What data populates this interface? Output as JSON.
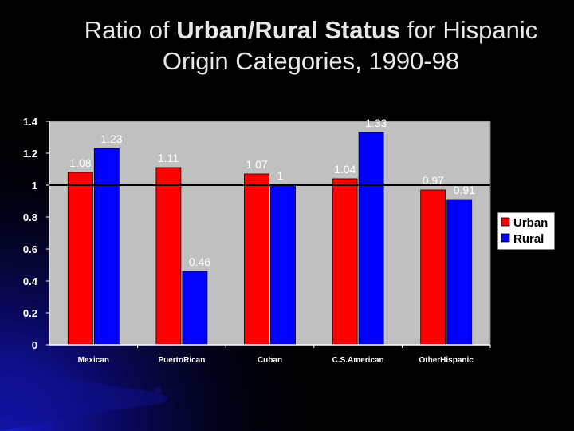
{
  "slide": {
    "title_parts": {
      "pre": "Ratio of ",
      "bold": "Urban/Rural Status",
      "post": " for Hispanic",
      "line2": "Origin Categories, 1990-98"
    },
    "background_color": "#000000",
    "accent_color": "#1a1ad8"
  },
  "chart_data": {
    "type": "bar",
    "title": "Ratio of Urban/Rural Status for Hispanic Origin Categories, 1990-98",
    "categories": [
      "Mexican",
      "PuertoRican",
      "Cuban",
      "C.S.American",
      "OtherHispanic"
    ],
    "series": [
      {
        "name": "Urban",
        "color": "#ff0000",
        "values": [
          1.08,
          1.11,
          1.07,
          1.04,
          0.97
        ],
        "labels": [
          "1.08",
          "1.11",
          "1.07",
          "1.04",
          "0.97"
        ]
      },
      {
        "name": "Rural",
        "color": "#0000ff",
        "values": [
          1.23,
          0.46,
          1.0,
          1.33,
          0.91
        ],
        "labels": [
          "1.23",
          "0.46",
          "1",
          "1.33",
          "0.91"
        ]
      }
    ],
    "ylim": [
      0,
      1.4
    ],
    "yticks": [
      "0",
      "0.2",
      "0.4",
      "0.6",
      "0.8",
      "1",
      "1.2",
      "1.4"
    ],
    "yticks_values": [
      0,
      0.2,
      0.4,
      0.6,
      0.8,
      1,
      1.2,
      1.4
    ],
    "reference_line": 1,
    "legend_position": "right",
    "grid": false,
    "plot_background": "#c0c0c0"
  }
}
